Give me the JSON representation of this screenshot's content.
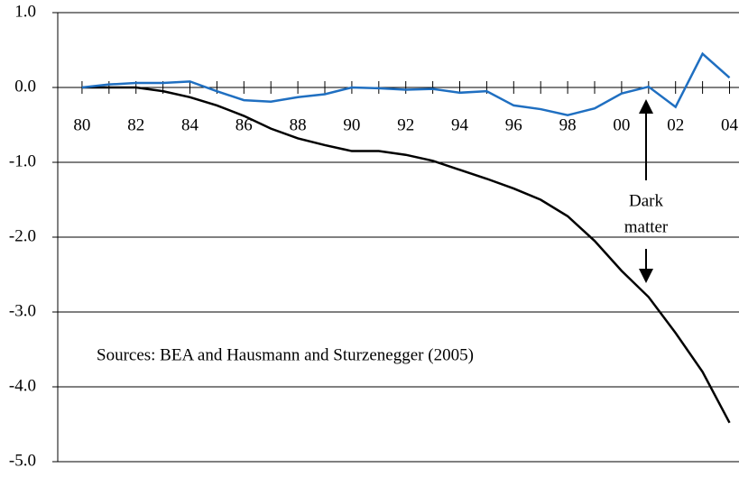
{
  "chart_data": {
    "type": "line",
    "x": [
      1980,
      1981,
      1982,
      1983,
      1984,
      1985,
      1986,
      1987,
      1988,
      1989,
      1990,
      1991,
      1992,
      1993,
      1994,
      1995,
      1996,
      1997,
      1998,
      1999,
      2000,
      2001,
      2002,
      2003,
      2004
    ],
    "series": [
      {
        "color": "#000000",
        "values": [
          0,
          0,
          0,
          -0.05,
          -0.13,
          -0.24,
          -0.38,
          -0.55,
          -0.68,
          -0.77,
          -0.85,
          -0.85,
          -0.9,
          -0.98,
          -1.1,
          -1.22,
          -1.35,
          -1.5,
          -1.72,
          -2.05,
          -2.45,
          -2.8,
          -3.28,
          -3.8,
          -4.48
        ]
      },
      {
        "color": "#1f6fc1",
        "values": [
          0,
          0.04,
          0.06,
          0.06,
          0.08,
          -0.05,
          -0.17,
          -0.19,
          -0.13,
          -0.09,
          0,
          -0.01,
          -0.03,
          -0.02,
          -0.07,
          -0.05,
          -0.24,
          -0.29,
          -0.37,
          -0.28,
          -0.08,
          0.01,
          -0.26,
          0.45,
          0.13
        ]
      }
    ],
    "xlim": [
      1979.1,
      2004.05
    ],
    "xticks": [
      {
        "value": 1980,
        "label": "80"
      },
      {
        "value": 1982,
        "label": "82"
      },
      {
        "value": 1984,
        "label": "84"
      },
      {
        "value": 1986,
        "label": "86"
      },
      {
        "value": 1988,
        "label": "88"
      },
      {
        "value": 1990,
        "label": "90"
      },
      {
        "value": 1992,
        "label": "92"
      },
      {
        "value": 1994,
        "label": "94"
      },
      {
        "value": 1996,
        "label": "96"
      },
      {
        "value": 1998,
        "label": "98"
      },
      {
        "value": 2000,
        "label": "00"
      },
      {
        "value": 2002,
        "label": "02"
      },
      {
        "value": 2004,
        "label": "04"
      }
    ],
    "xminorticks": [
      1981,
      1983,
      1985,
      1987,
      1989,
      1991,
      1993,
      1995,
      1997,
      1999,
      2001,
      2003
    ],
    "ylim": [
      -5,
      1
    ],
    "yticks": [
      {
        "value": 1,
        "label": "1.0"
      },
      {
        "value": 0,
        "label": "0.0"
      },
      {
        "value": -1,
        "label": "-1.0"
      },
      {
        "value": -2,
        "label": "-2.0"
      },
      {
        "value": -3,
        "label": "-3.0"
      },
      {
        "value": -4,
        "label": "-4.0"
      },
      {
        "value": -5,
        "label": "-5.0"
      }
    ],
    "grid": true,
    "annotation": [
      "Dark",
      "matter"
    ],
    "source": "Sources: BEA and Hausmann and Sturzenegger (2005)"
  }
}
